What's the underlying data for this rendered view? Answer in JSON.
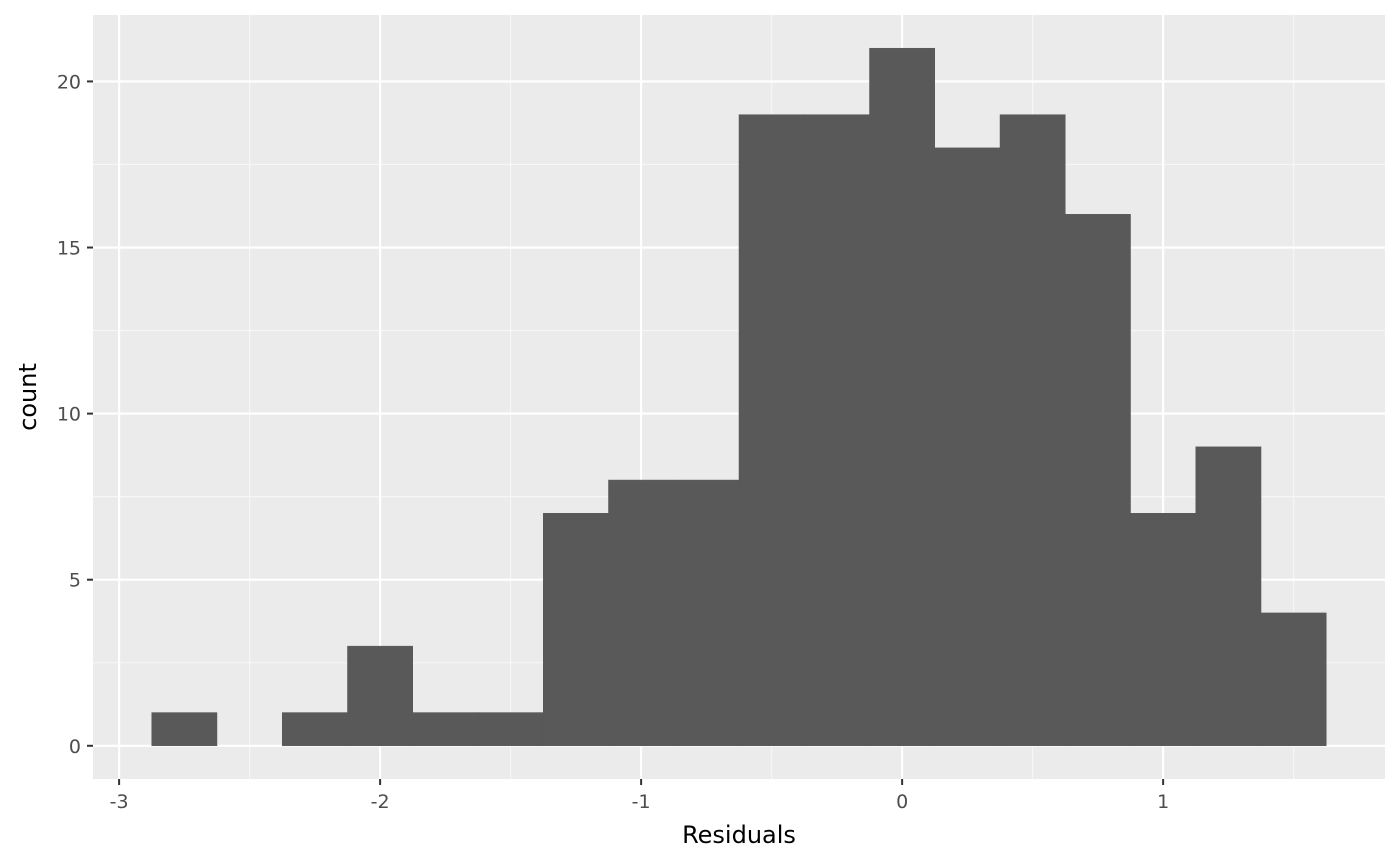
{
  "chart_data": {
    "type": "histogram",
    "xlabel": "Residuals",
    "ylabel": "count",
    "xlim": [
      -3.1,
      1.85
    ],
    "ylim": [
      -1.0,
      22.0
    ],
    "x_ticks": [
      -3,
      -2,
      -1,
      0,
      1
    ],
    "x_tick_labels": [
      "-3",
      "-2",
      "-1",
      "0",
      "1"
    ],
    "x_minor_ticks": [
      -2.5,
      -1.5,
      -0.5,
      0.5,
      1.5
    ],
    "y_ticks": [
      0,
      5,
      10,
      15,
      20
    ],
    "y_tick_labels": [
      "0",
      "5",
      "10",
      "15",
      "20"
    ],
    "y_minor_ticks": [
      2.5,
      7.5,
      12.5,
      17.5
    ],
    "bin_width": 0.25,
    "bins": [
      {
        "x0": -2.875,
        "x1": -2.625,
        "count": 1
      },
      {
        "x0": -2.625,
        "x1": -2.375,
        "count": 0
      },
      {
        "x0": -2.375,
        "x1": -2.125,
        "count": 1
      },
      {
        "x0": -2.125,
        "x1": -1.875,
        "count": 3
      },
      {
        "x0": -1.875,
        "x1": -1.625,
        "count": 1
      },
      {
        "x0": -1.625,
        "x1": -1.375,
        "count": 1
      },
      {
        "x0": -1.375,
        "x1": -1.125,
        "count": 7
      },
      {
        "x0": -1.125,
        "x1": -0.875,
        "count": 8
      },
      {
        "x0": -0.875,
        "x1": -0.625,
        "count": 8
      },
      {
        "x0": -0.625,
        "x1": -0.375,
        "count": 19
      },
      {
        "x0": -0.375,
        "x1": -0.125,
        "count": 19
      },
      {
        "x0": -0.125,
        "x1": 0.125,
        "count": 21
      },
      {
        "x0": 0.125,
        "x1": 0.375,
        "count": 18
      },
      {
        "x0": 0.375,
        "x1": 0.625,
        "count": 19
      },
      {
        "x0": 0.625,
        "x1": 0.875,
        "count": 16
      },
      {
        "x0": 0.875,
        "x1": 1.125,
        "count": 7
      },
      {
        "x0": 1.125,
        "x1": 1.375,
        "count": 9
      },
      {
        "x0": 1.375,
        "x1": 1.625,
        "count": 4
      }
    ],
    "grid": true,
    "colors": {
      "panel_background": "#ebebeb",
      "grid_major": "#ffffff",
      "grid_minor": "#f7f7f7",
      "bar_fill": "#595959",
      "tick_mark": "#333333"
    }
  }
}
